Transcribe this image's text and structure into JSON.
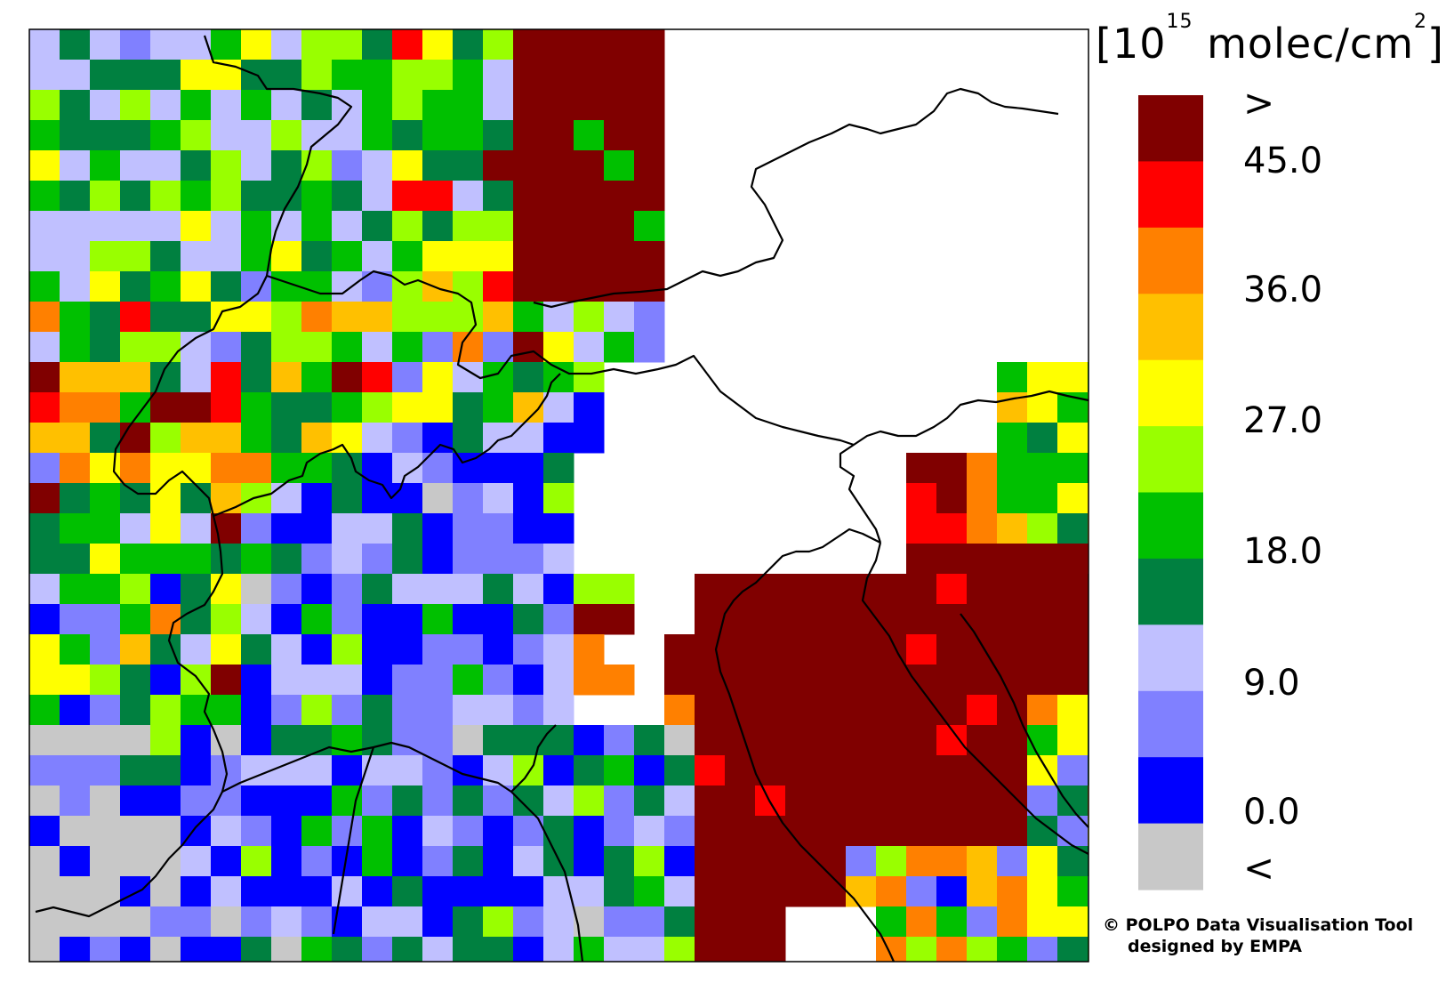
{
  "legend": {
    "title": "[10¹⁵ molec/cm²]",
    "title_parts": {
      "open": "[10",
      "exp": "15",
      "middle": " molec/cm",
      "sq": "2",
      "close": "]"
    },
    "above_symbol": ">",
    "below_symbol": "<",
    "tick_labels": [
      "45.0",
      "36.0",
      "27.0",
      "18.0",
      "9.0",
      "0.0"
    ],
    "colors": [
      "#800000",
      "#ff0000",
      "#ff8000",
      "#ffc000",
      "#ffff00",
      "#99ff00",
      "#00c000",
      "#008040",
      "#c0c0ff",
      "#8080ff",
      "#0000ff",
      "#c8c8c8"
    ]
  },
  "credit": {
    "line1": "© POLPO Data Visualisation Tool",
    "line2": "designed by EMPA"
  },
  "map": {
    "no_data_color": "#ffffff",
    "cell_classes": "0=<lowest(gray) 1=0-4.5(blue) 2=4.5-9(med blue) 3=9-13.5(lav) 4=13.5-18(dark green) 5=18-22.5(green) 6=22.5-27(lime) 7=27-31.5(yellow) 8=31.5-36(gold) 9=36-40.5(orange) 10=40.5-45(red) 11=>45(dark red) -1=no data"
  }
}
